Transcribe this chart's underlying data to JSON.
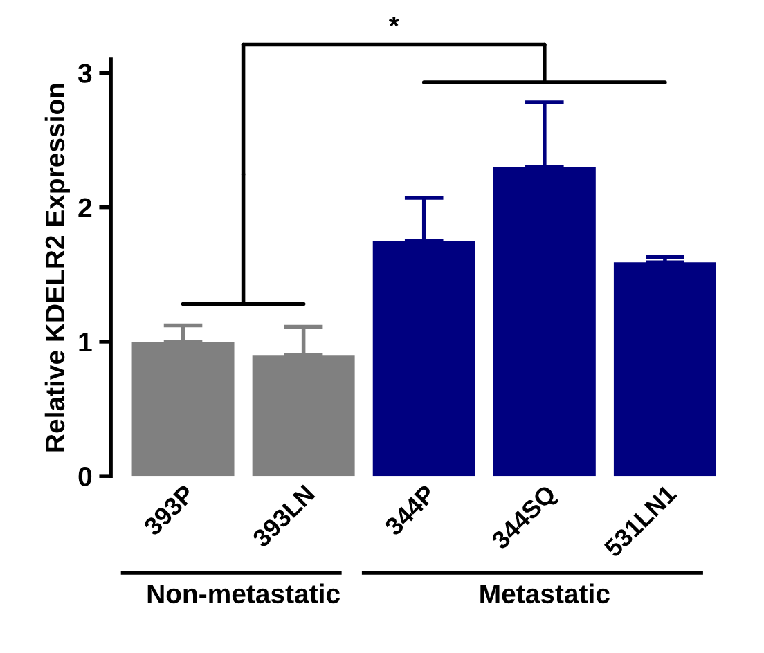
{
  "chart_data": {
    "type": "bar",
    "ylabel": "Relative KDELR2 Expression",
    "categories": [
      "393P",
      "393LN",
      "344P",
      "344SQ",
      "531LN1"
    ],
    "values": [
      1.0,
      0.9,
      1.75,
      2.3,
      1.59
    ],
    "colors": [
      "#808080",
      "#808080",
      "#000080",
      "#000080",
      "#000080"
    ],
    "errors": [
      [
        1.0,
        1.12
      ],
      [
        0.9,
        1.11
      ],
      [
        1.75,
        2.07
      ],
      [
        2.3,
        2.78
      ],
      [
        1.59,
        1.63
      ]
    ],
    "ylim": [
      0,
      3.1
    ],
    "yticks": [
      0,
      1,
      2,
      3
    ],
    "grid": false,
    "legend": false,
    "annotations": [
      "*",
      "Non-metastatic",
      "Metastatic"
    ]
  }
}
